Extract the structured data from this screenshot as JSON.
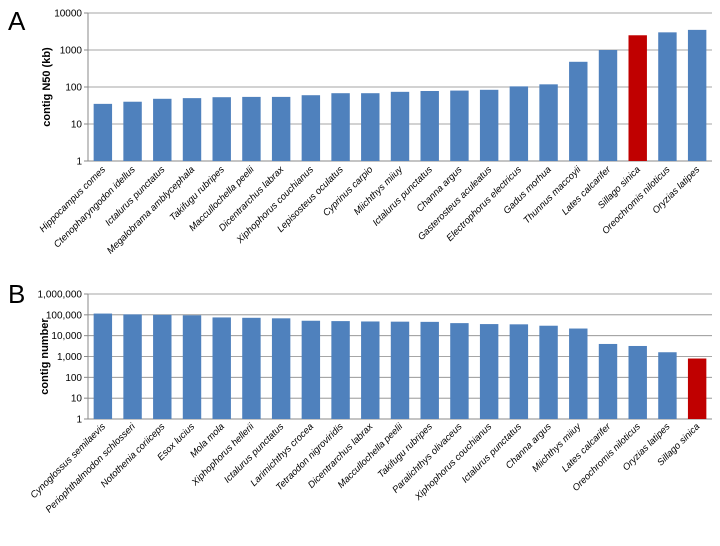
{
  "chart_data": [
    {
      "type": "bar",
      "panel_label": "A",
      "ylabel": "contig N50 (kb)",
      "ylim": [
        1,
        10000
      ],
      "yscale": "log",
      "yticks": [
        "1",
        "10",
        "100",
        "1000",
        "10000"
      ],
      "grid": true,
      "bar_color": "#4f81bd",
      "highlight_color": "#c00000",
      "highlight_category": "Sillago sinica",
      "categories": [
        "Hippocampus comes",
        "Ctenopharyngodon idellus",
        "Ictalurus punctatus",
        "Megalobrama amblycephala",
        "Takifugu rubripes",
        "Maccullochella peelii",
        "Dicentrarchus labrax",
        "Xiphophorus couchianus",
        "Lepisosteus oculatus",
        "Cyprinus carpio",
        "Miichthys miiuy",
        "Ictalurus punctatus",
        "Channa argus",
        "Gasterosteus aculeatus",
        "Electrophorus electricus",
        "Gadus morhua",
        "Thunnus maccoyii",
        "Lates calcarifer",
        "Sillago sinica",
        "Oreochromis niloticus",
        "Oryzias latipes"
      ],
      "values": [
        35,
        40,
        48,
        50,
        53,
        54,
        54,
        60,
        68,
        68,
        74,
        78,
        80,
        84,
        104,
        118,
        480,
        1000,
        2500,
        3000,
        3500
      ]
    },
    {
      "type": "bar",
      "panel_label": "B",
      "ylabel": "contig number",
      "ylim": [
        1,
        1000000
      ],
      "yscale": "log",
      "yticks": [
        "1",
        "10",
        "100",
        "1,000",
        "10,000",
        "100,000",
        "1,000,000"
      ],
      "grid": true,
      "bar_color": "#4f81bd",
      "highlight_color": "#c00000",
      "highlight_category": "Sillago sinica",
      "categories": [
        "Cynoglossus semilaevis",
        "Periophthalmodon schlosseri",
        "Notothenia coriiceps",
        "Esox lucius",
        "Mola mola",
        "Xiphophorus hellerii",
        "Ictalurus punctatus",
        "Larimichthys crocea",
        "Tetraodon nigroviridis",
        "Dicentrarchus labrax",
        "Maccullochella peelii",
        "Takifugu rubripes",
        "Paralichthys olivaceus",
        "Xiphophorus couchianus",
        "Ictalurus punctatus",
        "Channa argus",
        "Miichthys miiuy",
        "Lates calcarifer",
        "Oreochromis niloticus",
        "Oryzias latipes",
        "Sillago sinica"
      ],
      "values": [
        115000,
        105000,
        100000,
        95000,
        75000,
        72000,
        68000,
        52000,
        50000,
        48000,
        47000,
        46000,
        40000,
        36000,
        35000,
        30000,
        22000,
        4000,
        3200,
        1600,
        800
      ]
    }
  ]
}
